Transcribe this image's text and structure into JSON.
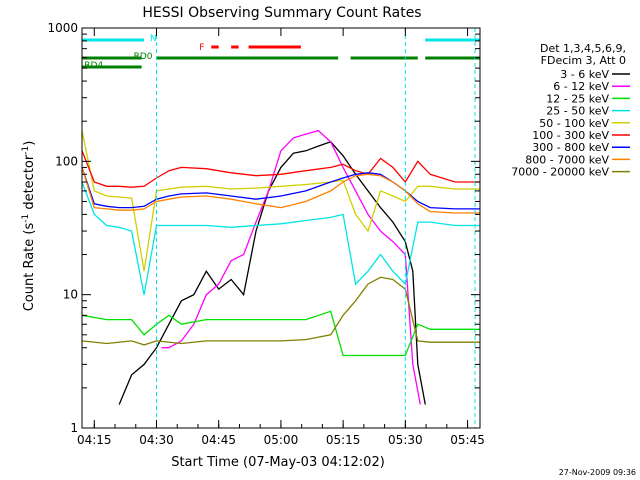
{
  "chart_data": {
    "type": "line",
    "title": "HESSI Observing Summary Count Rates",
    "xlabel": "Start Time (07-May-03 04:12:02)",
    "ylabel_main": "Count Rate (s",
    "ylabel_sup1": "-1",
    "ylabel_mid": " detector",
    "ylabel_sup2": "-1",
    "ylabel_end": ")",
    "footer": "27-Nov-2009 09:36",
    "yscale": "log",
    "ylim": [
      1,
      1000
    ],
    "xlim": [
      4.2006,
      5.8
    ],
    "x_ticks": [
      {
        "v": 4.25,
        "label": "04:15"
      },
      {
        "v": 4.5,
        "label": "04:30"
      },
      {
        "v": 4.75,
        "label": "04:45"
      },
      {
        "v": 5.0,
        "label": "05:00"
      },
      {
        "v": 5.25,
        "label": "05:15"
      },
      {
        "v": 5.5,
        "label": "05:30"
      },
      {
        "v": 5.75,
        "label": "05:45"
      }
    ],
    "y_ticks": [
      {
        "v": 1,
        "label": "1"
      },
      {
        "v": 10,
        "label": "10"
      },
      {
        "v": 100,
        "label": "100"
      },
      {
        "v": 1000,
        "label": "1000"
      }
    ],
    "legend": {
      "placement": "right",
      "header": [
        "Det 1,3,4,5,6,9,",
        "FDecim 3, Att 0"
      ]
    },
    "flags": [
      {
        "label": "N",
        "color": "#00e5e5",
        "segments": [
          [
            4.2006,
            4.45
          ],
          [
            5.58,
            5.8
          ]
        ]
      },
      {
        "label": "F",
        "color": "#ff0000",
        "segments": [
          [
            4.72,
            4.75
          ],
          [
            4.8,
            4.83
          ],
          [
            4.87,
            5.08
          ]
        ]
      },
      {
        "label": "RD0",
        "color": "#008000",
        "segments": [
          [
            4.2006,
            4.44
          ],
          [
            4.5,
            5.23
          ],
          [
            5.28,
            5.55
          ],
          [
            5.58,
            5.8
          ]
        ]
      },
      {
        "label": "RD4",
        "color": "#008000",
        "segments": [
          [
            4.2006,
            4.44
          ]
        ]
      }
    ],
    "saa_markers": [
      4.2006,
      4.5,
      5.5,
      5.78
    ],
    "series": [
      {
        "name": "3 - 6 keV",
        "color": "#000000",
        "x": [
          4.35,
          4.4,
          4.45,
          4.5,
          4.55,
          4.6,
          4.65,
          4.7,
          4.75,
          4.8,
          4.85,
          4.9,
          4.95,
          5.0,
          5.05,
          5.1,
          5.15,
          5.2,
          5.25,
          5.3,
          5.35,
          5.4,
          5.45,
          5.5,
          5.53,
          5.55,
          5.58
        ],
        "y": [
          1.5,
          2.5,
          3,
          4,
          6,
          9,
          10,
          15,
          11,
          13,
          10,
          30,
          60,
          90,
          115,
          120,
          130,
          140,
          110,
          80,
          60,
          45,
          35,
          25,
          15,
          3,
          1.5
        ]
      },
      {
        "name": "6 - 12 keV",
        "color": "#ff00ff",
        "x": [
          4.52,
          4.55,
          4.6,
          4.65,
          4.7,
          4.75,
          4.8,
          4.85,
          4.9,
          4.95,
          5.0,
          5.05,
          5.1,
          5.15,
          5.2,
          5.25,
          5.3,
          5.35,
          5.4,
          5.45,
          5.5,
          5.53,
          5.56
        ],
        "y": [
          4,
          4,
          4.5,
          6,
          10,
          12,
          18,
          20,
          35,
          60,
          120,
          150,
          160,
          170,
          140,
          90,
          60,
          40,
          30,
          25,
          20,
          3,
          1.5
        ]
      },
      {
        "name": "12 - 25 keV",
        "color": "#00e000",
        "x": [
          4.2006,
          4.3,
          4.4,
          4.45,
          4.5,
          4.55,
          4.6,
          4.7,
          4.8,
          4.9,
          5.0,
          5.1,
          5.2,
          5.25,
          5.3,
          5.4,
          5.5,
          5.55,
          5.6,
          5.7,
          5.8
        ],
        "y": [
          7,
          6.5,
          6.5,
          5,
          6,
          7,
          6,
          6.5,
          6.5,
          6.5,
          6.5,
          6.5,
          7.5,
          3.5,
          3.5,
          3.5,
          3.5,
          6,
          5.5,
          5.5,
          5.5
        ]
      },
      {
        "name": "25 - 50 keV",
        "color": "#00e5e5",
        "x": [
          4.2006,
          4.25,
          4.3,
          4.35,
          4.4,
          4.45,
          4.5,
          4.55,
          4.6,
          4.7,
          4.8,
          4.9,
          5.0,
          5.1,
          5.2,
          5.25,
          5.3,
          5.35,
          5.4,
          5.45,
          5.5,
          5.55,
          5.6,
          5.7,
          5.8
        ],
        "y": [
          70,
          40,
          33,
          32,
          30,
          10,
          33,
          33,
          33,
          33,
          32,
          33,
          34,
          36,
          38,
          40,
          12,
          15,
          20,
          15,
          12,
          35,
          35,
          33,
          33
        ]
      },
      {
        "name": "50 - 100 keV",
        "color": "#d0d000",
        "x": [
          4.2006,
          4.25,
          4.3,
          4.35,
          4.4,
          4.45,
          4.5,
          4.55,
          4.6,
          4.7,
          4.8,
          4.9,
          5.0,
          5.1,
          5.2,
          5.25,
          5.3,
          5.35,
          5.4,
          5.45,
          5.5,
          5.55,
          5.6,
          5.7,
          5.8
        ],
        "y": [
          170,
          60,
          55,
          54,
          53,
          15,
          60,
          62,
          64,
          65,
          62,
          63,
          65,
          67,
          70,
          72,
          40,
          30,
          60,
          55,
          50,
          65,
          65,
          62,
          62
        ]
      },
      {
        "name": "100 - 300 keV",
        "color": "#ff0000",
        "x": [
          4.2006,
          4.25,
          4.3,
          4.35,
          4.4,
          4.45,
          4.5,
          4.55,
          4.6,
          4.7,
          4.8,
          4.9,
          5.0,
          5.1,
          5.2,
          5.25,
          5.3,
          5.35,
          5.4,
          5.45,
          5.5,
          5.55,
          5.6,
          5.7,
          5.8
        ],
        "y": [
          120,
          70,
          65,
          65,
          64,
          65,
          75,
          85,
          90,
          88,
          82,
          78,
          80,
          85,
          90,
          95,
          85,
          80,
          105,
          90,
          70,
          100,
          80,
          70,
          70
        ]
      },
      {
        "name": "300 - 800 keV",
        "color": "#0000ff",
        "x": [
          4.2006,
          4.25,
          4.3,
          4.35,
          4.4,
          4.45,
          4.5,
          4.55,
          4.6,
          4.7,
          4.8,
          4.9,
          5.0,
          5.1,
          5.2,
          5.25,
          5.3,
          5.35,
          5.4,
          5.45,
          5.5,
          5.55,
          5.6,
          5.7,
          5.8
        ],
        "y": [
          90,
          48,
          46,
          45,
          45,
          46,
          52,
          55,
          57,
          58,
          55,
          52,
          55,
          60,
          70,
          75,
          80,
          82,
          80,
          70,
          60,
          50,
          45,
          44,
          44
        ]
      },
      {
        "name": "800 - 7000 keV",
        "color": "#ff8000",
        "x": [
          4.2006,
          4.25,
          4.3,
          4.35,
          4.4,
          4.45,
          4.5,
          4.55,
          4.6,
          4.7,
          4.8,
          4.9,
          5.0,
          5.1,
          5.2,
          5.25,
          5.3,
          5.35,
          5.4,
          5.45,
          5.5,
          5.55,
          5.6,
          5.7,
          5.8
        ],
        "y": [
          90,
          45,
          44,
          43,
          43,
          44,
          50,
          52,
          54,
          55,
          52,
          48,
          45,
          50,
          60,
          70,
          78,
          80,
          78,
          70,
          60,
          48,
          42,
          41,
          41
        ]
      },
      {
        "name": "7000 - 20000 keV",
        "color": "#808000",
        "x": [
          4.2006,
          4.3,
          4.4,
          4.45,
          4.5,
          4.6,
          4.7,
          4.8,
          4.9,
          5.0,
          5.1,
          5.2,
          5.25,
          5.3,
          5.35,
          5.4,
          5.45,
          5.5,
          5.55,
          5.6,
          5.7,
          5.8
        ],
        "y": [
          4.5,
          4.3,
          4.5,
          4.2,
          4.5,
          4.3,
          4.5,
          4.5,
          4.5,
          4.5,
          4.6,
          5,
          7,
          9,
          12,
          13.5,
          13,
          11,
          4.5,
          4.4,
          4.4,
          4.4
        ]
      }
    ]
  }
}
